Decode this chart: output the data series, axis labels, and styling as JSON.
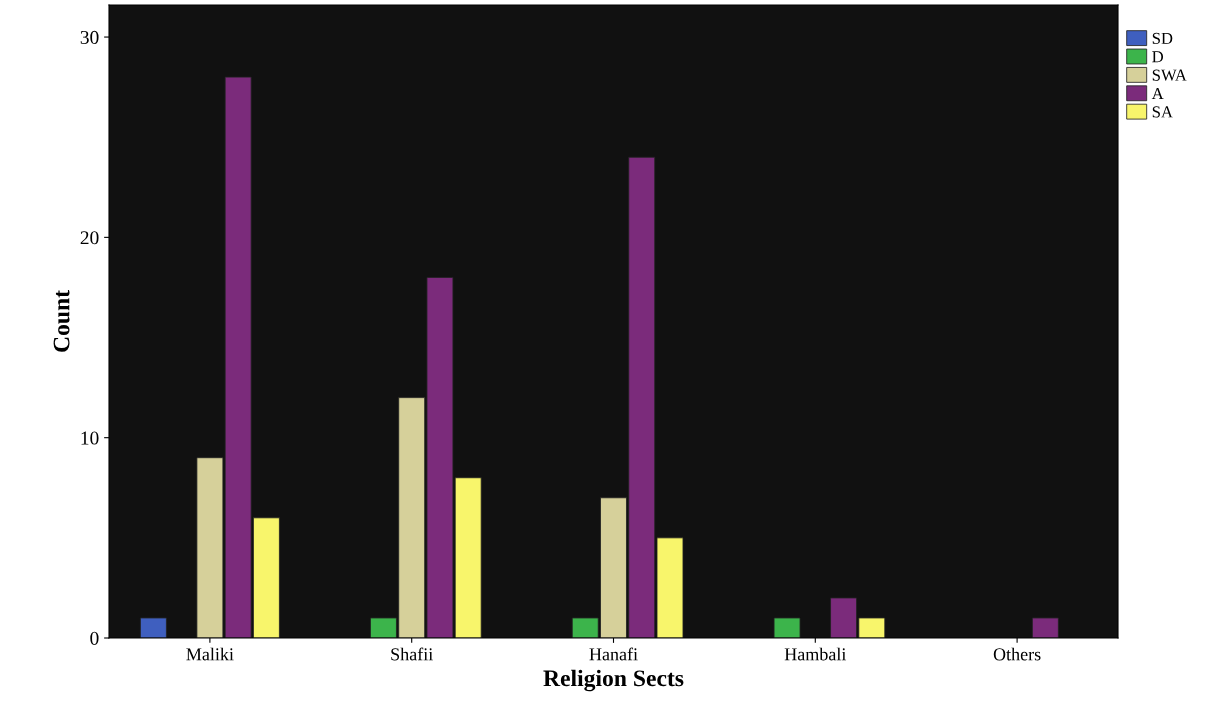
{
  "chart_data": {
    "type": "bar",
    "xlabel": "Religion Sects",
    "ylabel": "Count",
    "categories": [
      "Maliki",
      "Shafii",
      "Hanafi",
      "Hambali",
      "Others"
    ],
    "series": [
      {
        "name": "SD",
        "color": "#3f5fbf",
        "values": [
          1,
          null,
          null,
          null,
          null
        ]
      },
      {
        "name": "D",
        "color": "#3cb44b",
        "values": [
          null,
          1,
          1,
          1,
          null
        ]
      },
      {
        "name": "SWA",
        "color": "#d6d09a",
        "values": [
          9,
          12,
          7,
          null,
          null
        ]
      },
      {
        "name": "A",
        "color": "#7b2b7b",
        "values": [
          28,
          18,
          24,
          2,
          1
        ]
      },
      {
        "name": "SA",
        "color": "#f8f56b",
        "values": [
          6,
          8,
          5,
          1,
          null
        ]
      }
    ],
    "ylim": [
      0,
      31.6
    ],
    "yticks": [
      0,
      10,
      20,
      30
    ],
    "grid": false,
    "legend": "top right"
  }
}
